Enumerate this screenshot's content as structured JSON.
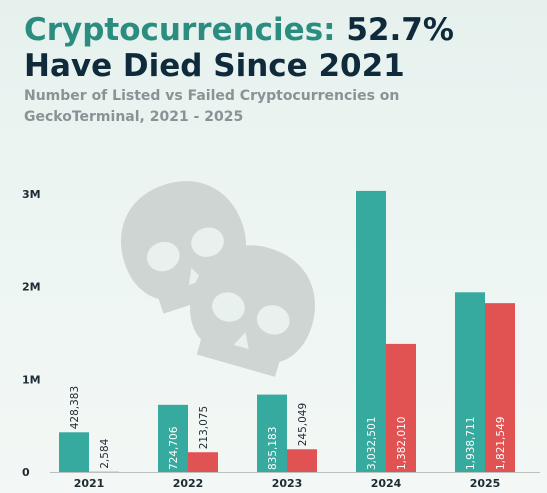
{
  "header": {
    "title_accent": "Cryptocurrencies:",
    "title_rest": " 52.7% Have Died Since 2021",
    "subtitle": "Number of Listed vs Failed Cryptocurrencies on GeckoTerminal, 2021 - 2025"
  },
  "colors": {
    "listed": "#36aa9e",
    "failed": "#e15252",
    "title_accent": "#2a8d80",
    "title_dark": "#0f2a3b",
    "skull": "#cfd5d3"
  },
  "icons": [
    "skull-icon",
    "skull-icon"
  ],
  "chart_data": {
    "type": "bar",
    "categories": [
      "2021",
      "2022",
      "2023",
      "2024",
      "2025"
    ],
    "series": [
      {
        "values": [
          428383,
          724706,
          835183,
          3032501,
          1938711
        ],
        "labels": [
          "428,383",
          "724,706",
          "835,183",
          "3,032,501",
          "1,938,711"
        ]
      },
      {
        "values": [
          2584,
          213075,
          245049,
          1382010,
          1821549
        ],
        "labels": [
          "2,584",
          "213,075",
          "245,049",
          "1,382,010",
          "1,821,549"
        ]
      }
    ],
    "ylim": [
      0,
      3150000
    ],
    "yticks": [
      0,
      1000000,
      2000000,
      3000000
    ],
    "ytick_labels": [
      "0",
      "1M",
      "2M",
      "3M"
    ],
    "grid": false,
    "legend": "none"
  }
}
